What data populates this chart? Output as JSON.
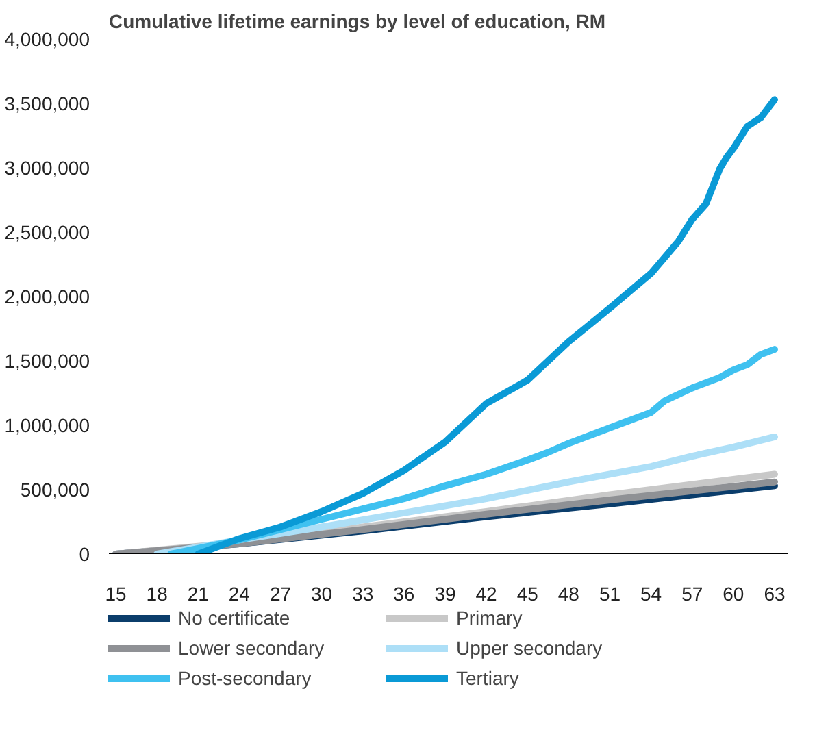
{
  "chart_data": {
    "type": "line",
    "title": "Cumulative lifetime earnings by level of education, RM",
    "xlim": [
      14.5,
      64
    ],
    "xticks": [
      15,
      18,
      21,
      24,
      27,
      30,
      33,
      36,
      39,
      42,
      45,
      48,
      51,
      54,
      57,
      60,
      63
    ],
    "ylim": [
      0,
      4000000
    ],
    "yticks": [
      {
        "value": 0,
        "label": "0"
      },
      {
        "value": 500000,
        "label": "500,000"
      },
      {
        "value": 1000000,
        "label": "1,000,000"
      },
      {
        "value": 1500000,
        "label": "1,500,000"
      },
      {
        "value": 2000000,
        "label": "2,000,000"
      },
      {
        "value": 2500000,
        "label": "2,500,000"
      },
      {
        "value": 3000000,
        "label": "3,000,000"
      },
      {
        "value": 3500000,
        "label": "3,500,000"
      },
      {
        "value": 4000000,
        "label": "4,000,000"
      }
    ],
    "grid": false,
    "legend": "bottom",
    "marker": "none",
    "line_style": "solid",
    "series": [
      {
        "name": "No certificate",
        "color": "#0b3d6b",
        "x": [
          15,
          24,
          33,
          42,
          51,
          63
        ],
        "values": [
          0,
          80000,
          180000,
          290000,
          390000,
          530000
        ]
      },
      {
        "name": "Primary",
        "color": "#c8c8c8",
        "x": [
          15,
          24,
          33,
          42,
          51,
          63
        ],
        "values": [
          0,
          90000,
          210000,
          330000,
          460000,
          620000
        ]
      },
      {
        "name": "Lower secondary",
        "color": "#8f9195",
        "x": [
          15,
          24,
          33,
          42,
          51,
          63
        ],
        "values": [
          0,
          80000,
          190000,
          310000,
          420000,
          560000
        ]
      },
      {
        "name": "Upper secondary",
        "color": "#addff7",
        "x": [
          18,
          24,
          30,
          36,
          42,
          48,
          54,
          57,
          60,
          63
        ],
        "values": [
          0,
          110000,
          210000,
          320000,
          430000,
          560000,
          680000,
          760000,
          830000,
          910000
        ]
      },
      {
        "name": "Post-secondary",
        "color": "#3fc1f0",
        "x": [
          19,
          24,
          27,
          30,
          33,
          36,
          39,
          42,
          45,
          46.5,
          48,
          51,
          54,
          55,
          57,
          59,
          60,
          61,
          62,
          63
        ],
        "values": [
          0,
          110000,
          190000,
          270000,
          350000,
          430000,
          530000,
          620000,
          730000,
          790000,
          860000,
          980000,
          1100000,
          1190000,
          1290000,
          1370000,
          1430000,
          1470000,
          1550000,
          1590000
        ]
      },
      {
        "name": "Tertiary",
        "color": "#0a9ad6",
        "x": [
          21,
          24,
          27,
          30,
          33,
          36,
          39,
          42,
          45,
          48,
          51,
          54,
          56,
          57,
          58,
          59,
          59.5,
          60,
          61,
          62,
          63
        ],
        "values": [
          0,
          120000,
          210000,
          330000,
          470000,
          650000,
          870000,
          1170000,
          1350000,
          1650000,
          1910000,
          2180000,
          2430000,
          2600000,
          2720000,
          2990000,
          3080000,
          3150000,
          3320000,
          3390000,
          3530000
        ]
      }
    ]
  }
}
